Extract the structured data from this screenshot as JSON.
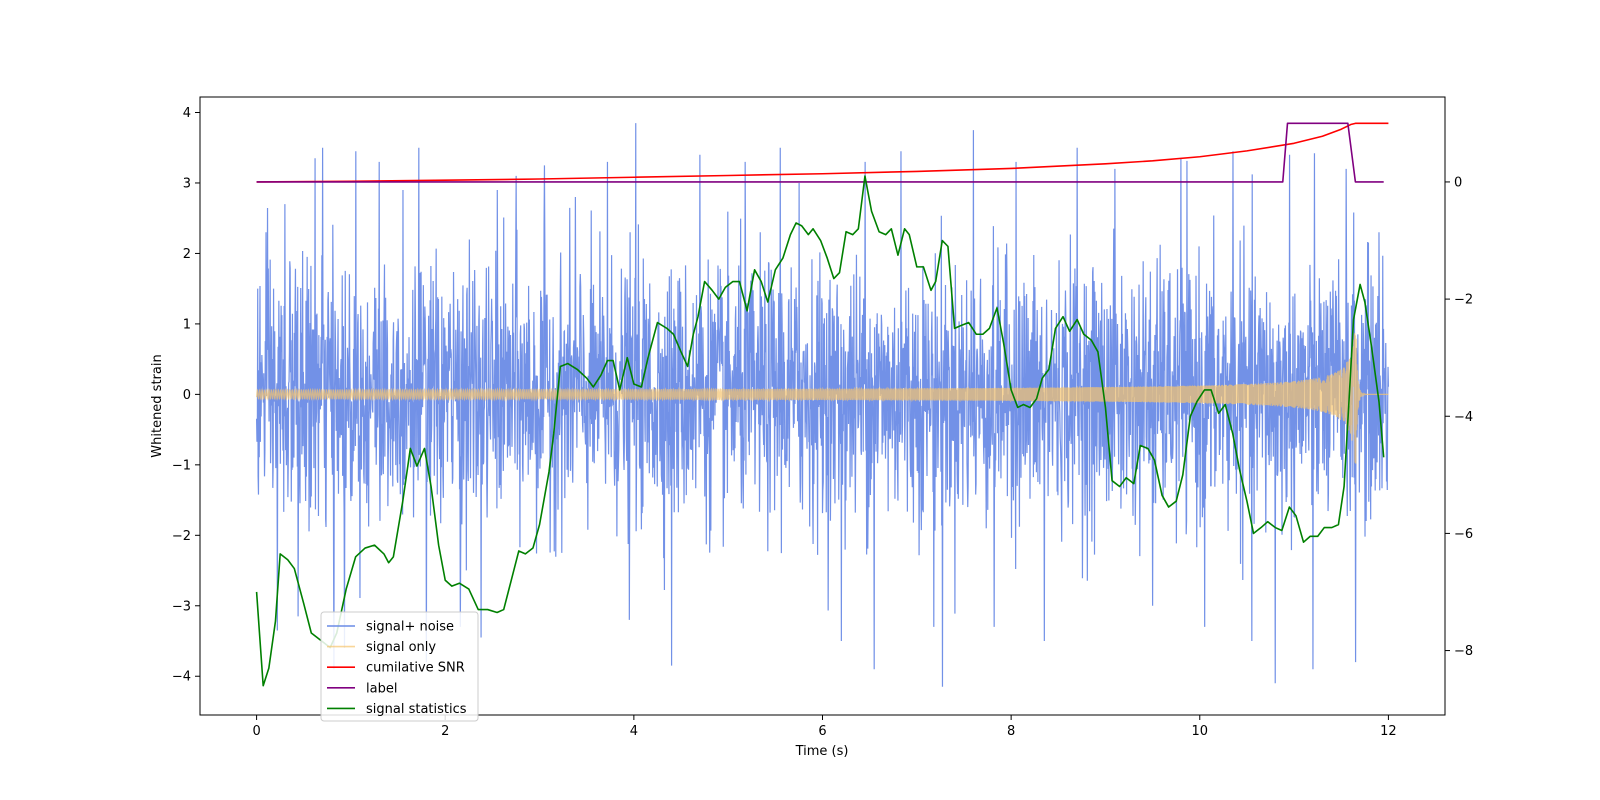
{
  "chart_data": {
    "type": "line",
    "xlabel": "Time (s)",
    "ylabel": "Whitened strain",
    "xlim": [
      -0.6,
      12.6
    ],
    "ylim": [
      -4.55,
      4.22
    ],
    "y2lim": [
      -9.1,
      1.45
    ],
    "x_ticks": [
      0,
      2,
      4,
      6,
      8,
      10,
      12
    ],
    "x_tick_labels": [
      "0",
      "2",
      "4",
      "6",
      "8",
      "10",
      "12"
    ],
    "y_ticks": [
      4,
      3,
      2,
      1,
      0,
      -1,
      -2,
      -3,
      -4
    ],
    "y_tick_labels": [
      "4",
      "3",
      "2",
      "1",
      "0",
      "−1",
      "−2",
      "−3",
      "−4"
    ],
    "y2_ticks": [
      0,
      -2,
      -4,
      -6,
      -8
    ],
    "y2_tick_labels": [
      "0",
      "−2",
      "−4",
      "−6",
      "−8"
    ],
    "legend_position": "lower-left",
    "series": [
      {
        "name": "signal+ noise",
        "axis": "left",
        "color": "#6a8be6",
        "description": "whitened noise plus injected chirp, 0 to 12 s",
        "duration": 12,
        "noise_sigma": 0.9,
        "spikes": [
          [
            0.1,
            2.3
          ],
          [
            0.22,
            -3.35
          ],
          [
            0.3,
            2.7
          ],
          [
            0.44,
            -3.15
          ],
          [
            0.62,
            3.35
          ],
          [
            0.7,
            3.5
          ],
          [
            0.82,
            -3.9
          ],
          [
            0.93,
            -3.6
          ],
          [
            1.05,
            3.45
          ],
          [
            1.3,
            3.3
          ],
          [
            1.55,
            2.9
          ],
          [
            1.72,
            3.5
          ],
          [
            1.8,
            -3.8
          ],
          [
            2.16,
            -3.3
          ],
          [
            2.38,
            -3.45
          ],
          [
            2.55,
            2.9
          ],
          [
            2.75,
            3.1
          ],
          [
            3.05,
            3.25
          ],
          [
            3.38,
            2.8
          ],
          [
            3.72,
            3.3
          ],
          [
            3.95,
            -3.2
          ],
          [
            4.02,
            3.85
          ],
          [
            4.4,
            -3.85
          ],
          [
            4.7,
            3.4
          ],
          [
            5.18,
            3.3
          ],
          [
            5.55,
            3.5
          ],
          [
            5.75,
            3.0
          ],
          [
            6.2,
            -3.5
          ],
          [
            6.45,
            3.3
          ],
          [
            6.55,
            -3.9
          ],
          [
            6.83,
            3.45
          ],
          [
            7.18,
            -3.3
          ],
          [
            7.27,
            -4.15
          ],
          [
            7.6,
            3.75
          ],
          [
            7.82,
            -3.3
          ],
          [
            8.05,
            3.3
          ],
          [
            8.35,
            -3.5
          ],
          [
            8.7,
            3.5
          ],
          [
            9.1,
            3.2
          ],
          [
            9.5,
            -3.0
          ],
          [
            9.8,
            3.35
          ],
          [
            10.05,
            -3.3
          ],
          [
            10.35,
            3.45
          ],
          [
            10.55,
            -3.5
          ],
          [
            10.8,
            -4.1
          ],
          [
            10.95,
            3.4
          ],
          [
            11.2,
            -3.9
          ],
          [
            11.55,
            3.2
          ],
          [
            11.65,
            -3.8
          ],
          [
            11.9,
            2.3
          ]
        ]
      },
      {
        "name": "signal only",
        "axis": "left",
        "color": "#f7c56e",
        "description": "chirp waveform, amplitude growing to about 1.3 near 11.65 s",
        "peak_time": 11.65,
        "peak_amplitude": 1.3
      },
      {
        "name": "cumilative SNR",
        "axis": "right",
        "color": "#ff0000",
        "x": [
          0,
          1,
          2,
          3,
          4,
          5,
          6,
          7,
          8,
          9,
          9.5,
          10,
          10.5,
          11,
          11.3,
          11.5,
          11.6,
          11.65,
          12
        ],
        "y": [
          0,
          0.01,
          0.03,
          0.05,
          0.08,
          0.11,
          0.14,
          0.18,
          0.23,
          0.31,
          0.36,
          0.43,
          0.53,
          0.66,
          0.78,
          0.9,
          0.98,
          1.0,
          1.0
        ]
      },
      {
        "name": "label",
        "axis": "right",
        "color": "#800080",
        "x": [
          0,
          10.88,
          10.93,
          11.57,
          11.65,
          11.95
        ],
        "y": [
          0,
          0,
          1,
          1,
          0,
          0
        ]
      },
      {
        "name": "signal statistics",
        "axis": "right",
        "color": "#008000",
        "x": [
          0,
          0.07,
          0.13,
          0.2,
          0.25,
          0.33,
          0.4,
          0.5,
          0.58,
          0.7,
          0.78,
          0.85,
          0.95,
          1.05,
          1.15,
          1.25,
          1.35,
          1.4,
          1.45,
          1.55,
          1.63,
          1.7,
          1.78,
          1.85,
          1.93,
          2.0,
          2.07,
          2.15,
          2.25,
          2.35,
          2.45,
          2.55,
          2.62,
          2.7,
          2.78,
          2.85,
          2.93,
          3.0,
          3.1,
          3.15,
          3.22,
          3.3,
          3.4,
          3.5,
          3.57,
          3.65,
          3.72,
          3.78,
          3.85,
          3.93,
          4.0,
          4.08,
          4.15,
          4.25,
          4.35,
          4.42,
          4.5,
          4.57,
          4.63,
          4.68,
          4.75,
          4.83,
          4.9,
          4.97,
          5.05,
          5.12,
          5.2,
          5.28,
          5.35,
          5.42,
          5.5,
          5.58,
          5.66,
          5.72,
          5.78,
          5.85,
          5.9,
          5.98,
          6.05,
          6.12,
          6.18,
          6.25,
          6.32,
          6.38,
          6.45,
          6.52,
          6.6,
          6.67,
          6.73,
          6.8,
          6.87,
          6.92,
          7.0,
          7.07,
          7.15,
          7.2,
          7.27,
          7.33,
          7.4,
          7.47,
          7.55,
          7.63,
          7.7,
          7.77,
          7.85,
          7.92,
          8.0,
          8.07,
          8.13,
          8.2,
          8.27,
          8.33,
          8.4,
          8.47,
          8.55,
          8.62,
          8.7,
          8.77,
          8.85,
          8.92,
          9.0,
          9.07,
          9.15,
          9.22,
          9.3,
          9.37,
          9.45,
          9.52,
          9.6,
          9.67,
          9.75,
          9.82,
          9.9,
          9.97,
          10.05,
          10.12,
          10.2,
          10.27,
          10.35,
          10.42,
          10.5,
          10.57,
          10.65,
          10.72,
          10.8,
          10.87,
          10.95,
          11.02,
          11.1,
          11.17,
          11.25,
          11.32,
          11.4,
          11.47,
          11.53,
          11.58,
          11.63,
          11.7,
          11.75,
          11.82,
          11.9,
          11.95
        ],
        "y": [
          -7.0,
          -8.6,
          -8.3,
          -7.5,
          -6.35,
          -6.45,
          -6.6,
          -7.2,
          -7.7,
          -7.85,
          -7.95,
          -7.7,
          -6.95,
          -6.4,
          -6.25,
          -6.2,
          -6.35,
          -6.5,
          -6.4,
          -5.45,
          -4.55,
          -4.85,
          -4.55,
          -5.2,
          -6.2,
          -6.8,
          -6.9,
          -6.85,
          -6.95,
          -7.3,
          -7.3,
          -7.35,
          -7.3,
          -6.8,
          -6.3,
          -6.35,
          -6.25,
          -5.85,
          -4.95,
          -4.3,
          -3.15,
          -3.1,
          -3.2,
          -3.35,
          -3.5,
          -3.3,
          -3.05,
          -3.05,
          -3.55,
          -3.0,
          -3.45,
          -3.5,
          -3.0,
          -2.4,
          -2.5,
          -2.6,
          -2.9,
          -3.15,
          -2.6,
          -2.3,
          -1.7,
          -1.85,
          -2.0,
          -1.8,
          -1.7,
          -1.7,
          -2.2,
          -1.5,
          -1.7,
          -2.05,
          -1.5,
          -1.3,
          -0.9,
          -0.7,
          -0.75,
          -0.9,
          -0.8,
          -1.0,
          -1.3,
          -1.65,
          -1.55,
          -0.85,
          -0.9,
          -0.8,
          0.1,
          -0.5,
          -0.85,
          -0.9,
          -0.8,
          -1.25,
          -0.8,
          -0.9,
          -1.45,
          -1.45,
          -1.85,
          -1.7,
          -1.0,
          -1.1,
          -2.5,
          -2.45,
          -2.4,
          -2.6,
          -2.6,
          -2.5,
          -2.15,
          -2.75,
          -3.55,
          -3.85,
          -3.8,
          -3.85,
          -3.7,
          -3.35,
          -3.2,
          -2.5,
          -2.3,
          -2.55,
          -2.35,
          -2.6,
          -2.7,
          -2.9,
          -3.85,
          -5.1,
          -5.2,
          -5.05,
          -5.15,
          -4.5,
          -4.55,
          -4.75,
          -5.35,
          -5.55,
          -5.45,
          -5.0,
          -4.0,
          -3.75,
          -3.55,
          -3.55,
          -3.95,
          -3.8,
          -4.3,
          -4.9,
          -5.45,
          -6.0,
          -5.9,
          -5.8,
          -5.9,
          -5.95,
          -5.55,
          -5.7,
          -6.15,
          -6.05,
          -6.05,
          -5.9,
          -5.9,
          -5.85,
          -5.2,
          -3.8,
          -2.35,
          -1.75,
          -2.05,
          -2.8,
          -3.75,
          -4.7
        ]
      }
    ]
  }
}
